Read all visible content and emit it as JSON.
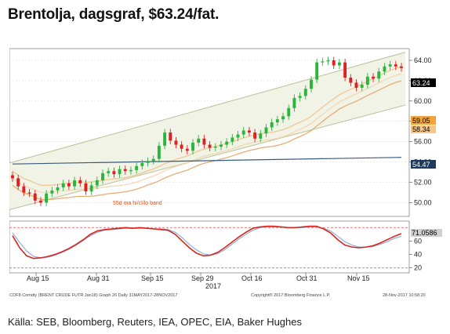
{
  "page": {
    "title": "Brentolja, dagsgraf, $63.24/fat.",
    "source": "Källa: SEB, Bloomberg, Reuters, IEA, OPEC, EIA, Baker Hughes"
  },
  "chart_data": [
    {
      "type": "candlestick",
      "title": "",
      "ylim": [
        48.8,
        65.0
      ],
      "y_ticks": [
        "50.00",
        "52.00",
        "54.00",
        "56.00",
        "58.00",
        "60.00",
        "62.00",
        "64.00"
      ],
      "price_label": "63.24",
      "level_labels": [
        "59.05",
        "58.34",
        "54.47"
      ],
      "band_label": "55d ma hi/cl/lo band",
      "x_labels": [
        "Aug 15",
        "Aug 31",
        "Sep 15",
        "Sep 29",
        "Oct 16",
        "Oct 31",
        "Nov 15"
      ],
      "year_label": "2017",
      "footer_left": "COF8 Comdty (BRENT CRUDE FUTR  Jan18) Graph 26  Daily 31MAY2017-28NOV2017",
      "footer_mid": "Copyright® 2017 Bloomberg Finance L.P.",
      "footer_right": "28-Nov-2017 10:58:20",
      "closes": [
        52.4,
        51.6,
        51.0,
        50.9,
        50.2,
        50.0,
        50.9,
        51.2,
        51.5,
        51.9,
        51.6,
        52.2,
        51.9,
        51.1,
        51.7,
        52.2,
        52.9,
        53.1,
        52.8,
        53.3,
        53.1,
        53.2,
        53.6,
        53.9,
        54.1,
        54.3,
        55.6,
        56.9,
        56.1,
        55.7,
        55.3,
        55.1,
        55.9,
        56.3,
        55.7,
        55.4,
        55.5,
        55.7,
        56.0,
        56.4,
        56.7,
        57.1,
        56.9,
        56.3,
        56.8,
        57.4,
        57.9,
        58.2,
        58.5,
        59.3,
        60.3,
        60.5,
        61.2,
        62.1,
        63.8,
        63.9,
        64.0,
        63.5,
        63.8,
        62.3,
        61.8,
        61.3,
        61.6,
        62.4,
        62.2,
        62.9,
        63.4,
        63.6,
        63.4,
        63.24
      ],
      "stochastic": {
        "ylim": [
          15,
          85
        ],
        "y_ticks": [
          "20",
          "40",
          "60"
        ],
        "last_value": "71.0586",
        "upper_level": 80,
        "lower_level": 20,
        "k": [
          68,
          50,
          38,
          34,
          35,
          37,
          40,
          44,
          49,
          55,
          62,
          70,
          75,
          77,
          78,
          79,
          80,
          79,
          80,
          79,
          78,
          77,
          76,
          70,
          60,
          50,
          42,
          38,
          39,
          43,
          50,
          58,
          66,
          73,
          79,
          81,
          82,
          82,
          81,
          80,
          80,
          81,
          82,
          82,
          78,
          72,
          62,
          54,
          51,
          50,
          51,
          53,
          57,
          62,
          67,
          71
        ],
        "d": [
          72,
          58,
          45,
          37,
          35,
          36,
          39,
          43,
          48,
          54,
          61,
          68,
          73,
          76,
          77,
          78,
          79,
          79,
          79,
          79,
          78,
          78,
          77,
          73,
          65,
          55,
          47,
          41,
          39,
          41,
          47,
          55,
          63,
          70,
          76,
          80,
          81,
          81,
          81,
          80,
          80,
          80,
          81,
          81,
          79,
          75,
          67,
          59,
          54,
          51,
          51,
          52,
          55,
          59,
          64,
          67
        ]
      }
    }
  ]
}
